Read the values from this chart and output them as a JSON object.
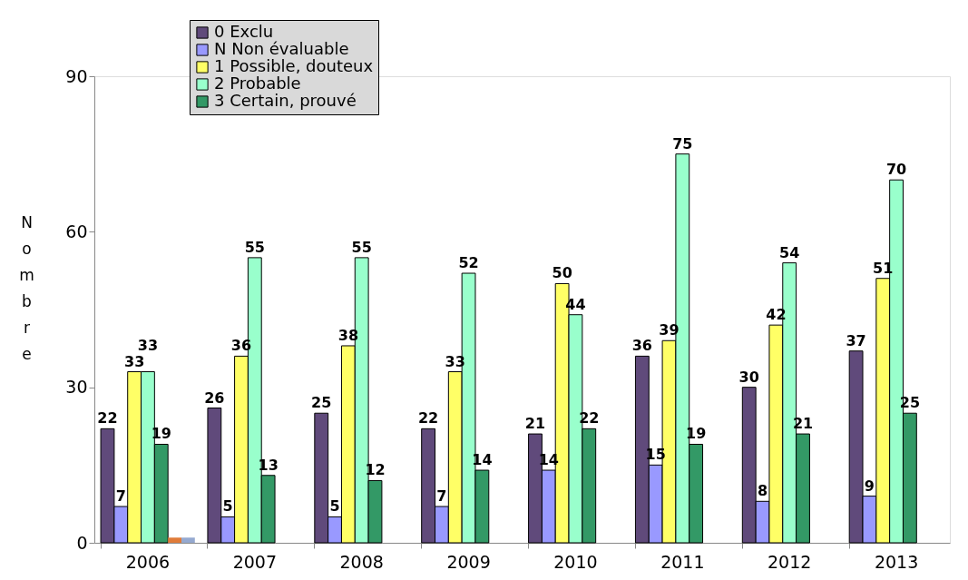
{
  "chart_data": {
    "type": "bar",
    "ylabel": "Nombre",
    "categories": [
      "2006",
      "2007",
      "2008",
      "2009",
      "2010",
      "2011",
      "2012",
      "2013"
    ],
    "series": [
      {
        "name": "0 Exclu",
        "color": "#604a7b",
        "values": [
          22,
          26,
          25,
          22,
          21,
          36,
          30,
          37
        ],
        "value_labels": [
          "22",
          "26",
          "25",
          "22",
          "21",
          "36",
          "30",
          "37"
        ]
      },
      {
        "name": "N Non évaluable",
        "color": "#9999ff",
        "values": [
          7,
          5,
          5,
          7,
          14,
          15,
          8,
          9
        ],
        "value_labels": [
          "7",
          "5",
          "5",
          "7",
          "14",
          "15",
          "8",
          "9"
        ]
      },
      {
        "name": "1 Possible, douteux",
        "color": "#ffff66",
        "values": [
          33,
          36,
          38,
          33,
          50,
          39,
          42,
          51
        ],
        "value_labels": [
          "33",
          "36",
          "38",
          "33",
          "50",
          "39",
          "42",
          "51"
        ]
      },
      {
        "name": "2 Probable",
        "color": "#99ffcc",
        "values": [
          33,
          55,
          55,
          52,
          44,
          75,
          54,
          70
        ],
        "value_labels": [
          "33",
          "55",
          "55",
          "52",
          "44",
          "75",
          "54",
          "70"
        ]
      },
      {
        "name": "3 Certain, prouvé",
        "color": "#339966",
        "values": [
          19,
          13,
          12,
          14,
          22,
          19,
          21,
          25
        ],
        "value_labels": [
          "19",
          "13",
          "12",
          "14",
          "22",
          "19",
          "21",
          "25"
        ]
      },
      {
        "color": "#e07b39",
        "values": [
          1,
          null,
          null,
          null,
          null,
          null,
          null,
          null
        ]
      },
      {
        "color": "#95a9d0",
        "values": [
          1,
          null,
          null,
          null,
          null,
          null,
          null,
          null
        ]
      }
    ],
    "ylim": [
      0,
      90
    ],
    "yticks": [
      0,
      30,
      60,
      90
    ],
    "grid": false,
    "legend": "top"
  }
}
